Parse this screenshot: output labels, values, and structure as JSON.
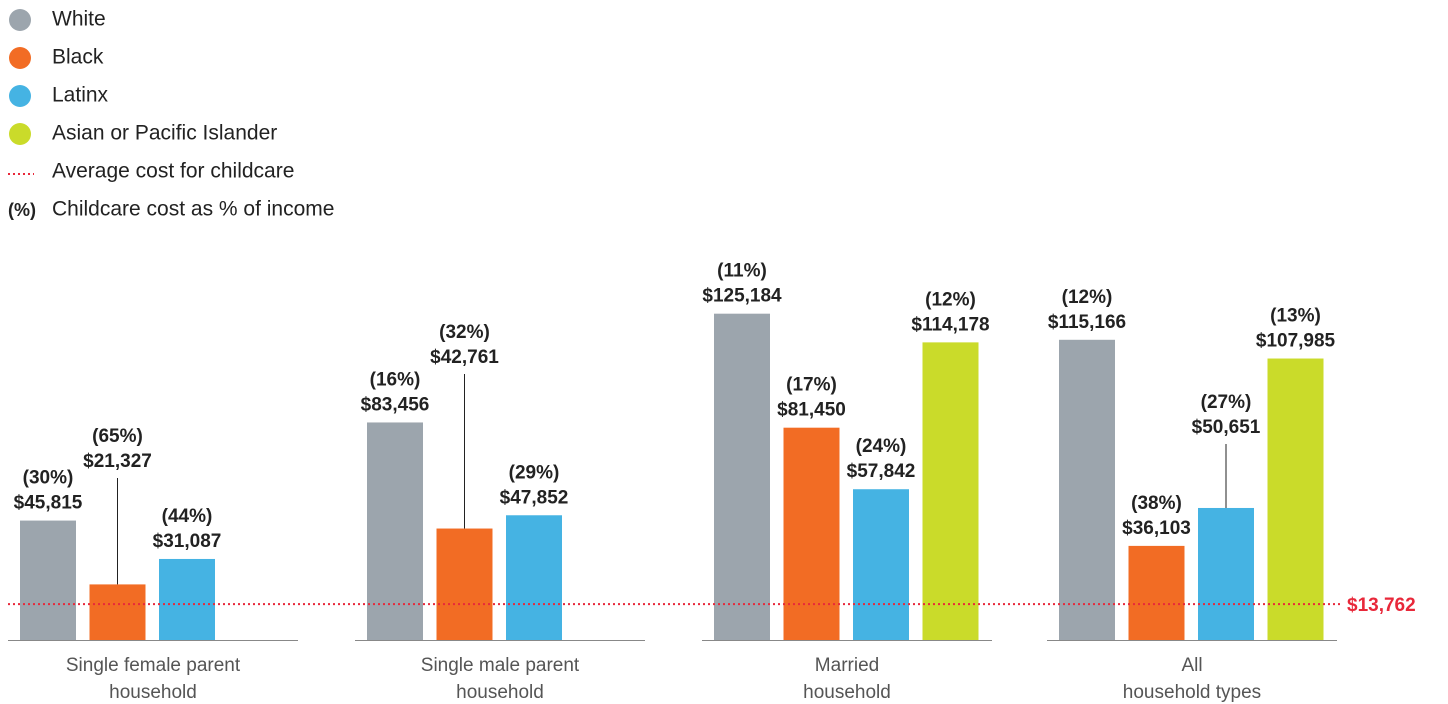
{
  "chart_data": {
    "type": "bar",
    "categories": [
      [
        "Single female parent",
        "household"
      ],
      [
        "Single male parent",
        "household"
      ],
      [
        "Married",
        "household"
      ],
      [
        "All",
        "household types"
      ]
    ],
    "series": [
      {
        "name": "White",
        "color": "#9ca5ad",
        "values": [
          45815,
          83456,
          125184,
          115166
        ],
        "value_labels": [
          "$45,815",
          "$83,456",
          "$125,184",
          "$115,166"
        ],
        "percent_labels": [
          "(30%)",
          "(16%)",
          "(11%)",
          "(12%)"
        ]
      },
      {
        "name": "Black",
        "color": "#f26c24",
        "values": [
          21327,
          42761,
          81450,
          36103
        ],
        "value_labels": [
          "$21,327",
          "$42,761",
          "$81,450",
          "$36,103"
        ],
        "percent_labels": [
          "(65%)",
          "(32%)",
          "(17%)",
          "(38%)"
        ]
      },
      {
        "name": "Latinx",
        "color": "#45b3e3",
        "values": [
          31087,
          47852,
          57842,
          50651
        ],
        "value_labels": [
          "$31,087",
          "$47,852",
          "$57,842",
          "$50,651"
        ],
        "percent_labels": [
          "(44%)",
          "(29%)",
          "(24%)",
          "(27%)"
        ]
      },
      {
        "name": "Asian or Pacific Islander",
        "color": "#cadb2a",
        "values": [
          null,
          null,
          114178,
          107985
        ],
        "value_labels": [
          null,
          null,
          "$114,178",
          "$107,985"
        ],
        "percent_labels": [
          null,
          null,
          "(12%)",
          "(13%)"
        ]
      }
    ],
    "ylim": [
      0,
      150000
    ],
    "reference": {
      "value": 13762,
      "label": "$13,762",
      "legend_label": "Average cost for childcare",
      "color": "#e8283a"
    },
    "percent_key": {
      "symbol": "(%)",
      "label": "Childcare cost as % of income"
    }
  }
}
